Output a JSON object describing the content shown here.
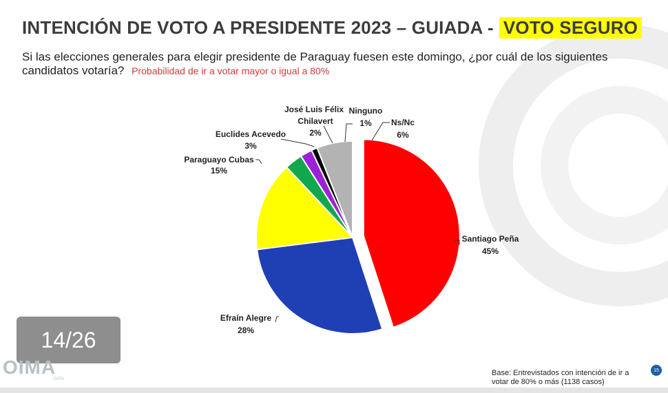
{
  "header": {
    "title": "INTENCIÓN DE VOTO A PRESIDENTE 2023 – GUIADA - ",
    "title_highlight": "VOTO SEGURO",
    "question": "Si las elecciones generales para elegir presidente de Paraguay fuesen este domingo, ¿por cuál de los siguientes candidatos votaría?",
    "note": "Probabilidad de ir a votar mayor o igual a 80%"
  },
  "chart_data": {
    "type": "pie",
    "slices": [
      {
        "label": "Santiago Peña",
        "value": 45,
        "value_label": "45%",
        "color": "#ff0000",
        "exploded": true
      },
      {
        "label": "Efraín Alegre",
        "value": 28,
        "value_label": "28%",
        "color": "#1f3fb5"
      },
      {
        "label": "Paraguayo Cubas",
        "value": 15,
        "value_label": "15%",
        "color": "#ffff00"
      },
      {
        "label": "Euclides Acevedo",
        "value": 3,
        "value_label": "3%",
        "color": "#11a84b"
      },
      {
        "label": "José Luis Félix Chilavert",
        "value": 2,
        "value_label": "2%",
        "color": "#9b22d6"
      },
      {
        "label": "Ninguno",
        "value": 1,
        "value_label": "1%",
        "color": "#000000"
      },
      {
        "label": "Ns/Nc",
        "value": 6,
        "value_label": "6%",
        "color": "#b3b3b3"
      }
    ]
  },
  "labels": {
    "pena_name": "Santiago Peña",
    "pena_pct": "45%",
    "alegre_name": "Efraín Alegre",
    "alegre_pct": "28%",
    "cubas_name": "Paraguayo Cubas",
    "cubas_pct": "15%",
    "acevedo_name": "Euclides Acevedo",
    "acevedo_pct": "3%",
    "chilavert_name1": "José Luis Félix",
    "chilavert_name2": "Chilavert",
    "chilavert_pct": "2%",
    "ninguno_name": "Ninguno",
    "ninguno_pct": "1%",
    "nsnc_name": "Ns/Nc",
    "nsnc_pct": "6%"
  },
  "footer": {
    "page_indicator": "14/26",
    "logo": "OIMA",
    "logo_sub": "DATA",
    "base_note": "Base: Entrevistados con intención de ir a votar de 80% o más (1138 casos)",
    "slide_number": "15"
  }
}
